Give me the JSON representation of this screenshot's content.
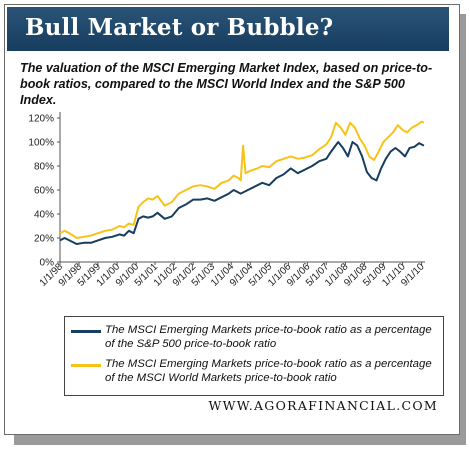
{
  "banner": {
    "title": "Bull Market or Bubble?"
  },
  "footer": {
    "text": "WWW.AGORAFINANCIAL.COM"
  },
  "colors": {
    "banner": "#173d5f",
    "series_navy": "#173d5f",
    "series_gold": "#f7c21a"
  },
  "chart_data": {
    "type": "line",
    "title": "The valuation of the MSCI Emerging Market Index, based on price-to-book ratios, compared to the MSCI World Index and the S&P 500 Index.",
    "xlabel": "",
    "ylabel": "",
    "ylim": [
      0,
      120
    ],
    "yticks": [
      "0%",
      "20%",
      "40%",
      "60%",
      "80%",
      "100%",
      "120%"
    ],
    "xlim": [
      "1998-01-01",
      "2010-10-15"
    ],
    "xticks": [
      "1/1/98",
      "9/1/98",
      "5/1/99",
      "1/1/00",
      "9/1/00",
      "5/1/01",
      "1/1/02",
      "9/1/02",
      "5/1/03",
      "1/1/04",
      "9/1/04",
      "5/1/05",
      "1/1/06",
      "9/1/06",
      "5/1/07",
      "1/1/08",
      "9/1/08",
      "5/1/09",
      "1/1/10",
      "9/1/10"
    ],
    "grid": false,
    "legend_position": "bottom",
    "series": [
      {
        "name": "The MSCI Emerging Markets price-to-book ratio as a percentage of the S&P 500 price-to-book ratio",
        "color": "#173d5f",
        "points": [
          [
            "1998-01-01",
            18
          ],
          [
            "1998-03-01",
            20
          ],
          [
            "1998-05-01",
            18
          ],
          [
            "1998-08-01",
            15
          ],
          [
            "1998-11-01",
            16
          ],
          [
            "1999-02-01",
            16
          ],
          [
            "1999-05-01",
            18
          ],
          [
            "1999-08-01",
            20
          ],
          [
            "1999-11-01",
            21
          ],
          [
            "2000-02-01",
            23
          ],
          [
            "2000-04-01",
            22
          ],
          [
            "2000-06-01",
            26
          ],
          [
            "2000-08-01",
            24
          ],
          [
            "2000-10-01",
            36
          ],
          [
            "2000-12-01",
            38
          ],
          [
            "2001-02-01",
            37
          ],
          [
            "2001-04-01",
            38
          ],
          [
            "2001-06-01",
            41
          ],
          [
            "2001-09-01",
            36
          ],
          [
            "2001-12-01",
            38
          ],
          [
            "2002-03-01",
            45
          ],
          [
            "2002-06-01",
            48
          ],
          [
            "2002-09-01",
            52
          ],
          [
            "2002-12-01",
            52
          ],
          [
            "2003-03-01",
            53
          ],
          [
            "2003-06-01",
            51
          ],
          [
            "2003-09-01",
            54
          ],
          [
            "2003-12-01",
            57
          ],
          [
            "2004-02-01",
            60
          ],
          [
            "2004-05-01",
            57
          ],
          [
            "2004-08-01",
            60
          ],
          [
            "2004-11-01",
            63
          ],
          [
            "2005-02-01",
            66
          ],
          [
            "2005-05-01",
            64
          ],
          [
            "2005-08-01",
            70
          ],
          [
            "2005-11-01",
            73
          ],
          [
            "2006-02-01",
            78
          ],
          [
            "2006-05-01",
            74
          ],
          [
            "2006-08-01",
            77
          ],
          [
            "2006-11-01",
            80
          ],
          [
            "2007-02-01",
            84
          ],
          [
            "2007-05-01",
            86
          ],
          [
            "2007-07-01",
            92
          ],
          [
            "2007-10-01",
            100
          ],
          [
            "2007-12-01",
            95
          ],
          [
            "2008-02-01",
            88
          ],
          [
            "2008-04-01",
            100
          ],
          [
            "2008-06-01",
            97
          ],
          [
            "2008-08-01",
            88
          ],
          [
            "2008-10-01",
            75
          ],
          [
            "2008-12-01",
            70
          ],
          [
            "2009-02-01",
            68
          ],
          [
            "2009-04-01",
            78
          ],
          [
            "2009-06-01",
            86
          ],
          [
            "2009-08-01",
            92
          ],
          [
            "2009-10-01",
            95
          ],
          [
            "2009-12-01",
            92
          ],
          [
            "2010-02-01",
            88
          ],
          [
            "2010-04-01",
            95
          ],
          [
            "2010-06-01",
            96
          ],
          [
            "2010-08-01",
            99
          ],
          [
            "2010-10-01",
            97
          ]
        ]
      },
      {
        "name": "The MSCI Emerging Markets price-to-book ratio as a percentage of the MSCI World Markets price-to-book ratio",
        "color": "#f7c21a",
        "points": [
          [
            "1998-01-01",
            24
          ],
          [
            "1998-03-01",
            26
          ],
          [
            "1998-05-01",
            24
          ],
          [
            "1998-08-01",
            20
          ],
          [
            "1998-11-01",
            21
          ],
          [
            "1999-02-01",
            22
          ],
          [
            "1999-05-01",
            24
          ],
          [
            "1999-08-01",
            26
          ],
          [
            "1999-11-01",
            27
          ],
          [
            "2000-02-01",
            30
          ],
          [
            "2000-04-01",
            29
          ],
          [
            "2000-06-01",
            32
          ],
          [
            "2000-08-01",
            31
          ],
          [
            "2000-10-01",
            46
          ],
          [
            "2000-12-01",
            50
          ],
          [
            "2001-02-01",
            53
          ],
          [
            "2001-04-01",
            52
          ],
          [
            "2001-06-01",
            55
          ],
          [
            "2001-09-01",
            47
          ],
          [
            "2001-12-01",
            50
          ],
          [
            "2002-03-01",
            57
          ],
          [
            "2002-06-01",
            60
          ],
          [
            "2002-09-01",
            63
          ],
          [
            "2002-12-01",
            64
          ],
          [
            "2003-03-01",
            63
          ],
          [
            "2003-06-01",
            61
          ],
          [
            "2003-09-01",
            66
          ],
          [
            "2003-12-01",
            68
          ],
          [
            "2004-02-01",
            72
          ],
          [
            "2004-04-01",
            70
          ],
          [
            "2004-05-01",
            68
          ],
          [
            "2004-06-01",
            97
          ],
          [
            "2004-07-01",
            74
          ],
          [
            "2004-09-01",
            76
          ],
          [
            "2004-12-01",
            78
          ],
          [
            "2005-02-01",
            80
          ],
          [
            "2005-05-01",
            79
          ],
          [
            "2005-08-01",
            84
          ],
          [
            "2005-11-01",
            86
          ],
          [
            "2006-02-01",
            88
          ],
          [
            "2006-05-01",
            86
          ],
          [
            "2006-08-01",
            87
          ],
          [
            "2006-11-01",
            89
          ],
          [
            "2007-02-01",
            94
          ],
          [
            "2007-05-01",
            98
          ],
          [
            "2007-07-01",
            104
          ],
          [
            "2007-09-01",
            116
          ],
          [
            "2007-11-01",
            112
          ],
          [
            "2008-01-01",
            106
          ],
          [
            "2008-03-01",
            116
          ],
          [
            "2008-05-01",
            112
          ],
          [
            "2008-07-01",
            103
          ],
          [
            "2008-09-01",
            97
          ],
          [
            "2008-11-01",
            88
          ],
          [
            "2009-01-01",
            85
          ],
          [
            "2009-03-01",
            92
          ],
          [
            "2009-05-01",
            100
          ],
          [
            "2009-07-01",
            104
          ],
          [
            "2009-09-01",
            108
          ],
          [
            "2009-11-01",
            114
          ],
          [
            "2010-01-01",
            110
          ],
          [
            "2010-03-01",
            108
          ],
          [
            "2010-05-01",
            112
          ],
          [
            "2010-07-01",
            114
          ],
          [
            "2010-09-01",
            117
          ],
          [
            "2010-10-01",
            116
          ]
        ]
      }
    ]
  }
}
